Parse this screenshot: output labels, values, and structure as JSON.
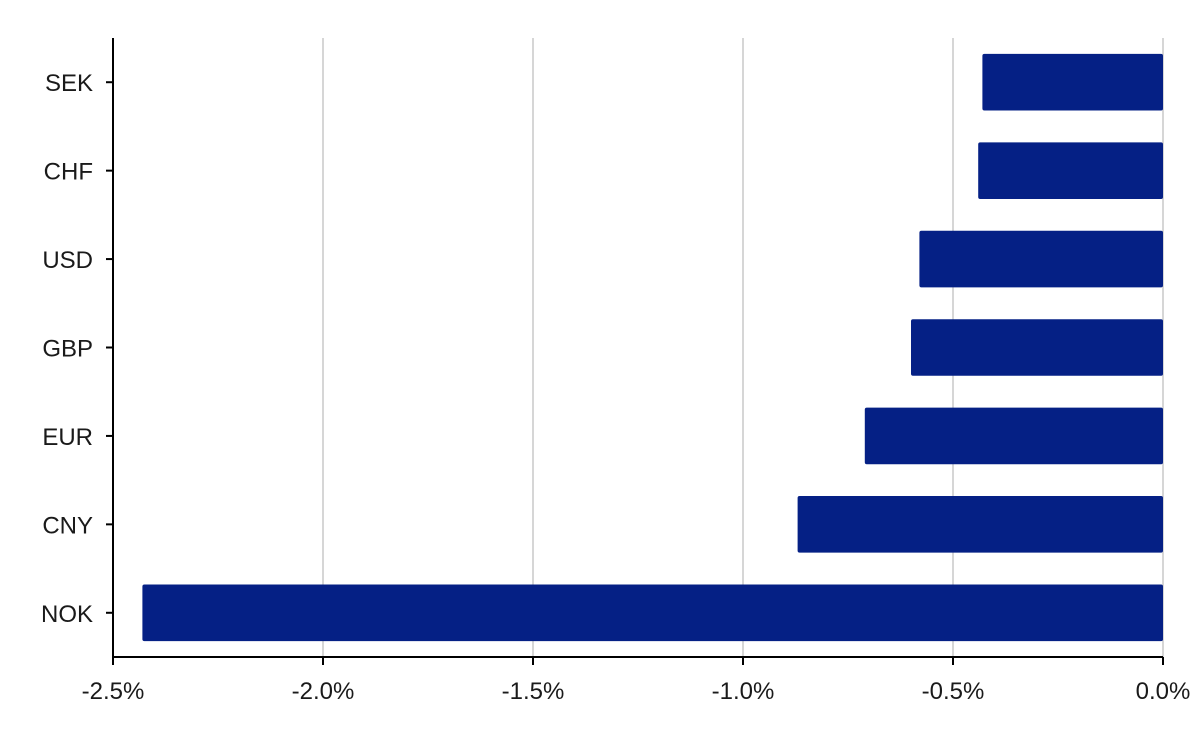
{
  "chart_data": {
    "type": "bar",
    "orientation": "horizontal",
    "title": "",
    "xlabel": "",
    "ylabel": "",
    "categories": [
      "SEK",
      "CHF",
      "USD",
      "GBP",
      "EUR",
      "CNY",
      "NOK"
    ],
    "values": [
      -0.43,
      -0.44,
      -0.58,
      -0.6,
      -0.71,
      -0.87,
      -2.43
    ],
    "xlim": [
      -2.5,
      0.0
    ],
    "xticks": [
      -2.5,
      -2.0,
      -1.5,
      -1.0,
      -0.5,
      0.0
    ],
    "xtick_labels": [
      "-2.5%",
      "-2.0%",
      "-1.5%",
      "-1.0%",
      "-0.5%",
      "0.0%"
    ],
    "grid": "vertical",
    "legend": "none",
    "bar_color": "#052085"
  }
}
